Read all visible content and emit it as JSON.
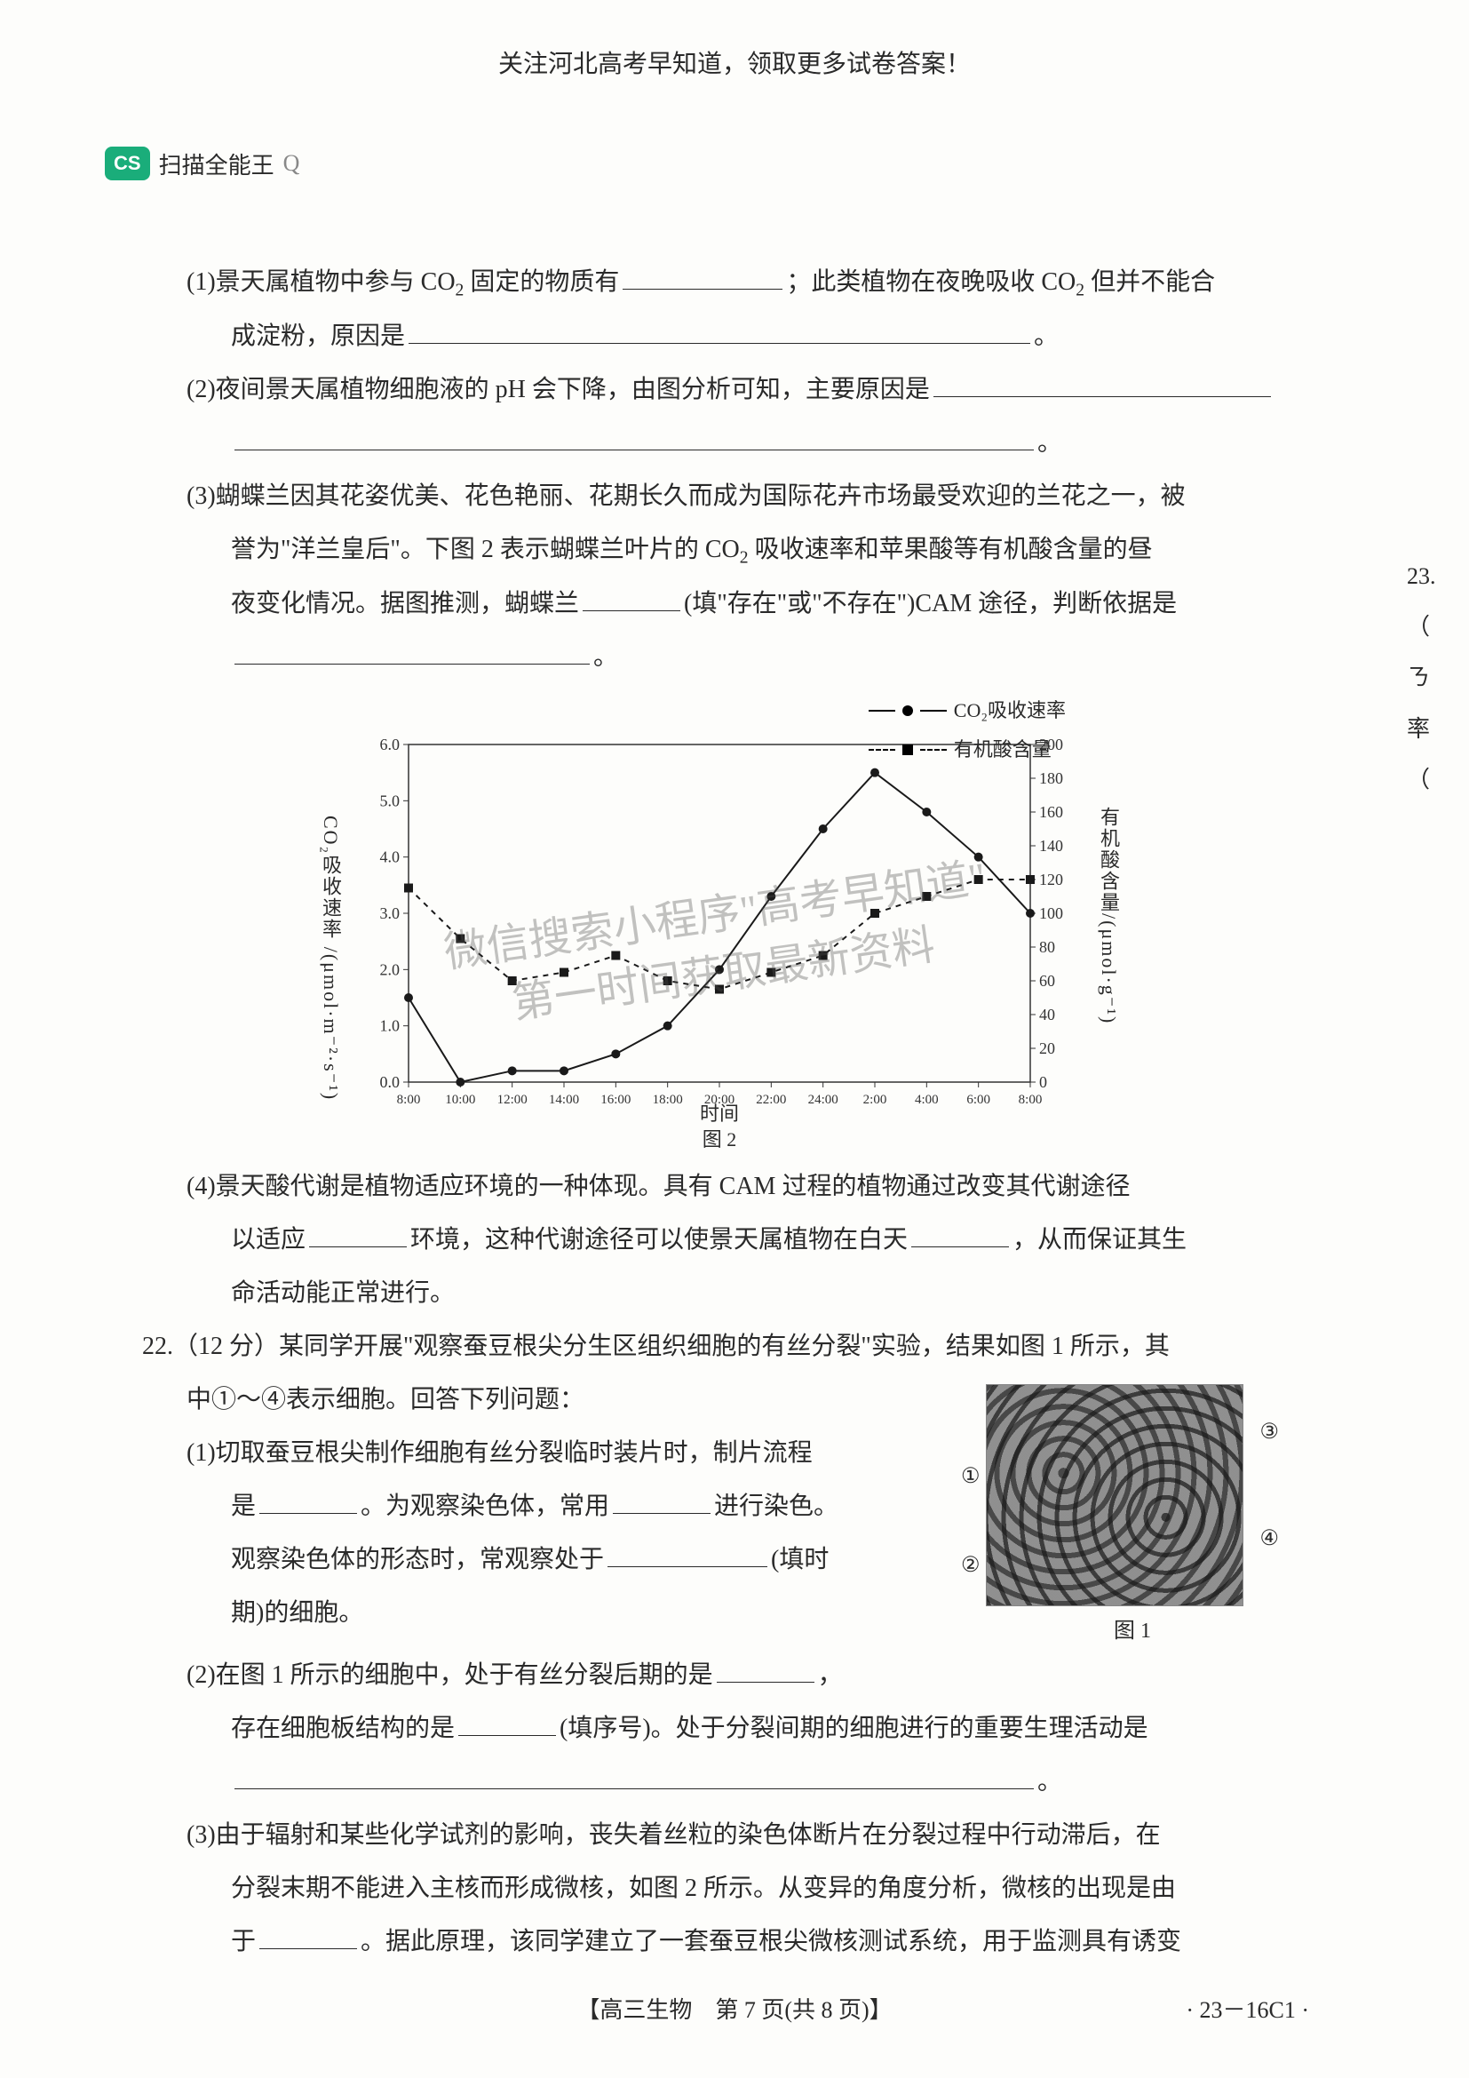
{
  "header": {
    "notice": "关注河北高考早知道，领取更多试卷答案！"
  },
  "scan": {
    "badge": "CS",
    "label": "扫描全能王",
    "search_glyph": "Q"
  },
  "side_fragment": {
    "l1": "23.（",
    "l2": "ㄋ",
    "l3": "率",
    "l4": "（"
  },
  "q21": {
    "p1_a": "(1)景天属植物中参与 CO",
    "p1_sub": "2",
    "p1_b": " 固定的物质有",
    "p1_c": "；此类植物在夜晚吸收 CO",
    "p1_d": " 但并不能合",
    "p1_e": "成淀粉，原因是",
    "p1_f": "。",
    "p2_a": "(2)夜间景天属植物细胞液的 pH 会下降，由图分析可知，主要原因是",
    "p2_b": "。",
    "p3_a": "(3)蝴蝶兰因其花姿优美、花色艳丽、花期长久而成为国际花卉市场最受欢迎的兰花之一，被",
    "p3_b": "誉为\"洋兰皇后\"。下图 2 表示蝴蝶兰叶片的 CO",
    "p3_c": " 吸收速率和苹果酸等有机酸含量的昼",
    "p3_d": "夜变化情况。据图推测，蝴蝶兰",
    "p3_e": "(填\"存在\"或\"不存在\")CAM 途径，判断依据是",
    "p3_f": "。",
    "p4_a": "(4)景天酸代谢是植物适应环境的一种体现。具有 CAM 过程的植物通过改变其代谢途径",
    "p4_b": "以适应",
    "p4_c": "环境，这种代谢途径可以使景天属植物在白天",
    "p4_d": "，从而保证其生",
    "p4_e": "命活动能正常进行。"
  },
  "chart": {
    "legend1": "CO₂吸收速率",
    "legend2": "有机酸含量",
    "y_left_label": "CO₂吸收速率 /(μmol·m⁻²·s⁻¹)",
    "y_right_label": "有机酸含量/(μmol·g⁻¹)",
    "x_label": "时间",
    "caption": "图 2",
    "y_left_ticks": [
      "0.0",
      "1.0",
      "2.0",
      "3.0",
      "4.0",
      "5.0",
      "6.0"
    ],
    "y_right_ticks": [
      "0",
      "20",
      "40",
      "60",
      "80",
      "100",
      "120",
      "140",
      "160",
      "180",
      "200"
    ],
    "x_ticks": [
      "8:00",
      "10:00",
      "12:00",
      "14:00",
      "16:00",
      "18:00",
      "20:00",
      "22:00",
      "24:00",
      "2:00",
      "4:00",
      "6:00",
      "8:00"
    ],
    "series_co2": [
      1.5,
      0.0,
      0.2,
      0.2,
      0.5,
      1.0,
      2.0,
      3.3,
      4.5,
      5.5,
      4.8,
      4.0,
      3.0
    ],
    "series_acid": [
      115,
      85,
      60,
      65,
      75,
      60,
      55,
      65,
      75,
      100,
      110,
      120,
      120
    ],
    "y_left_max": 6.0,
    "y_right_max": 200,
    "line_color": "#1a1a1a",
    "grid_color": "#333333",
    "bg": "#fdfdfb"
  },
  "watermark": {
    "l1": "微信搜索小程序\"高考早知道\"",
    "l2": "第一时间获取最新资料"
  },
  "q22": {
    "head": "22.（12 分）某同学开展\"观察蚕豆根尖分生区组织细胞的有丝分裂\"实验，结果如图 1 所示，其",
    "head2": "中①～④表示细胞。回答下列问题：",
    "p1_a": "(1)切取蚕豆根尖制作细胞有丝分裂临时装片时，制片流程",
    "p1_b": "是",
    "p1_c": "。为观察染色体，常用",
    "p1_d": "进行染色。",
    "p1_e": "观察染色体的形态时，常观察处于",
    "p1_f": "(填时",
    "p1_g": "期)的细胞。",
    "p2_a": "(2)在图 1 所示的细胞中，处于有丝分裂后期的是",
    "p2_b": "，",
    "p2_c": "存在细胞板结构的是",
    "p2_d": "(填序号)。处于分裂间期的细胞进行的重要生理活动是",
    "p2_e": "。",
    "p3_a": "(3)由于辐射和某些化学试剂的影响，丧失着丝粒的染色体断片在分裂过程中行动滞后，在",
    "p3_b": "分裂末期不能进入主核而形成微核，如图 2 所示。从变异的角度分析，微核的出现是由",
    "p3_c": "于",
    "p3_d": "。据此原理，该同学建立了一套蚕豆根尖微核测试系统，用于监测具有诱变",
    "fig_caption": "图 1",
    "marks": {
      "m1": "①",
      "m2": "②",
      "m3": "③",
      "m4": "④"
    }
  },
  "footer": {
    "center": "【高三生物　第 7 页(共 8 页)】",
    "code": "· 23－16C1 ·"
  }
}
